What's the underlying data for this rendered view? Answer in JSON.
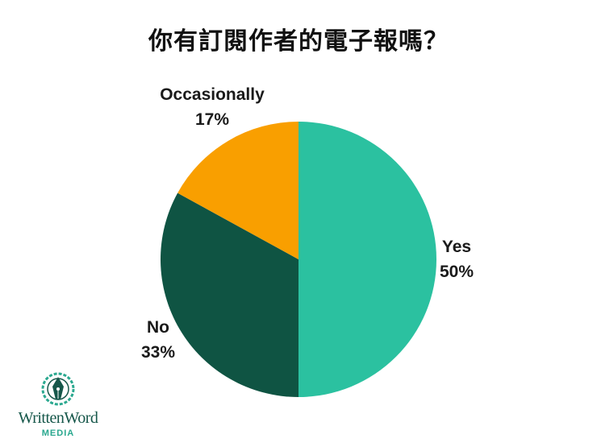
{
  "chart_data": {
    "type": "pie",
    "title": "你有訂閱作者的電子報嗎？",
    "slices": [
      {
        "name": "Yes",
        "value": 50,
        "label": "50%",
        "color": "#2bc1a0"
      },
      {
        "name": "No",
        "value": 33,
        "label": "33%",
        "color": "#0f5443"
      },
      {
        "name": "Occasionally",
        "value": 17,
        "label": "17%",
        "color": "#f99f00"
      }
    ],
    "start": "12 o'clock",
    "direction": "clockwise",
    "legend": "none"
  },
  "logo": {
    "wordmark": "WrittenWord",
    "sub": "MEDIA"
  }
}
